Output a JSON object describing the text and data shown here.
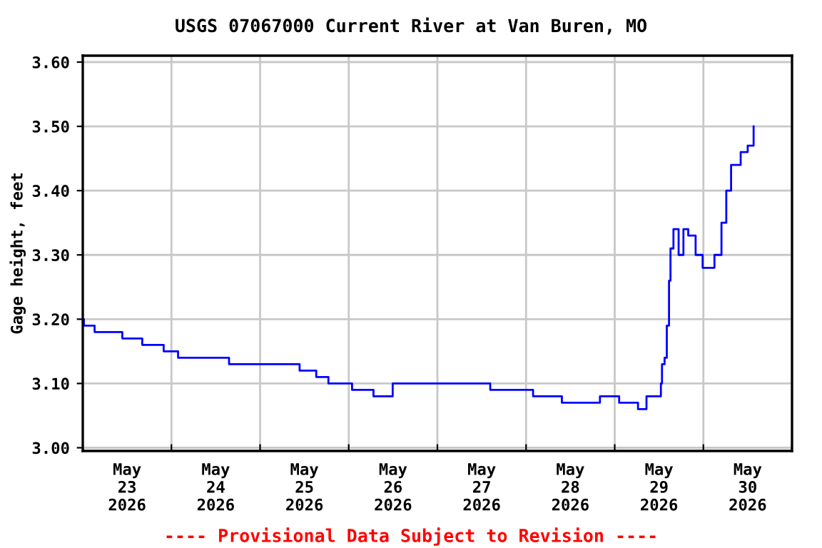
{
  "chart_data": {
    "type": "step",
    "title": "USGS 07067000 Current River at Van Buren, MO",
    "ylabel": "Gage height, feet",
    "annotations": [
      "---- Provisional Data Subject to Revision ----"
    ],
    "x": [
      "2026-05-23T00:00",
      "2026-05-23T00:18",
      "2026-05-23T03:12",
      "2026-05-23T10:42",
      "2026-05-23T16:06",
      "2026-05-23T21:54",
      "2026-05-24T01:48",
      "2026-05-24T15:36",
      "2026-05-24T23:00",
      "2026-05-25T10:42",
      "2026-05-25T15:12",
      "2026-05-25T18:30",
      "2026-05-26T00:54",
      "2026-05-26T06:42",
      "2026-05-26T11:54",
      "2026-05-27T14:18",
      "2026-05-28T01:54",
      "2026-05-28T09:42",
      "2026-05-28T20:00",
      "2026-05-29T01:12",
      "2026-05-29T06:18",
      "2026-05-29T08:36",
      "2026-05-29T12:30",
      "2026-05-29T12:48",
      "2026-05-29T13:30",
      "2026-05-29T14:06",
      "2026-05-29T14:42",
      "2026-05-29T15:06",
      "2026-05-29T15:54",
      "2026-05-29T17:18",
      "2026-05-29T18:36",
      "2026-05-29T19:54",
      "2026-05-29T21:54",
      "2026-05-29T23:48",
      "2026-05-30T02:18",
      "2026-05-30T03:00",
      "2026-05-30T04:54",
      "2026-05-30T06:12",
      "2026-05-30T07:30",
      "2026-05-30T08:48",
      "2026-05-30T10:06",
      "2026-05-30T12:00",
      "2026-05-30T13:36"
    ],
    "series": [
      {
        "color": "#0000ff",
        "values": [
          3.2,
          3.19,
          3.18,
          3.17,
          3.16,
          3.15,
          3.14,
          3.13,
          3.13,
          3.12,
          3.11,
          3.1,
          3.09,
          3.08,
          3.1,
          3.09,
          3.08,
          3.07,
          3.08,
          3.07,
          3.06,
          3.08,
          3.1,
          3.13,
          3.14,
          3.19,
          3.26,
          3.31,
          3.34,
          3.3,
          3.34,
          3.33,
          3.3,
          3.28,
          3.28,
          3.3,
          3.35,
          3.4,
          3.44,
          3.44,
          3.46,
          3.47,
          3.5
        ]
      }
    ],
    "xlim": [
      "2026-05-23T00:00",
      "2026-05-31T00:00"
    ],
    "xticks": [
      {
        "value": "2026-05-23T00:00",
        "label": null
      },
      {
        "value": "2026-05-23T12:00",
        "label": "May\n23\n2026"
      },
      {
        "value": "2026-05-24T00:00",
        "label": null
      },
      {
        "value": "2026-05-24T12:00",
        "label": "May\n24\n2026"
      },
      {
        "value": "2026-05-25T00:00",
        "label": null
      },
      {
        "value": "2026-05-25T12:00",
        "label": "May\n25\n2026"
      },
      {
        "value": "2026-05-26T00:00",
        "label": null
      },
      {
        "value": "2026-05-26T12:00",
        "label": "May\n26\n2026"
      },
      {
        "value": "2026-05-27T00:00",
        "label": null
      },
      {
        "value": "2026-05-27T12:00",
        "label": "May\n27\n2026"
      },
      {
        "value": "2026-05-28T00:00",
        "label": null
      },
      {
        "value": "2026-05-28T12:00",
        "label": "May\n28\n2026"
      },
      {
        "value": "2026-05-29T00:00",
        "label": null
      },
      {
        "value": "2026-05-29T12:00",
        "label": "May\n29\n2026"
      },
      {
        "value": "2026-05-30T00:00",
        "label": null
      },
      {
        "value": "2026-05-30T12:00",
        "label": "May\n30\n2026"
      },
      {
        "value": "2026-05-31T00:00",
        "label": null
      }
    ],
    "ylim": [
      2.995,
      3.61
    ],
    "yticks": [
      {
        "value": 3.0,
        "label": "3.00"
      },
      {
        "value": 3.1,
        "label": "3.10"
      },
      {
        "value": 3.2,
        "label": "3.20"
      },
      {
        "value": 3.3,
        "label": "3.30"
      },
      {
        "value": 3.4,
        "label": "3.40"
      },
      {
        "value": 3.5,
        "label": "3.50"
      },
      {
        "value": 3.6,
        "label": "3.60"
      }
    ],
    "grid": true,
    "line_style": "solid"
  }
}
